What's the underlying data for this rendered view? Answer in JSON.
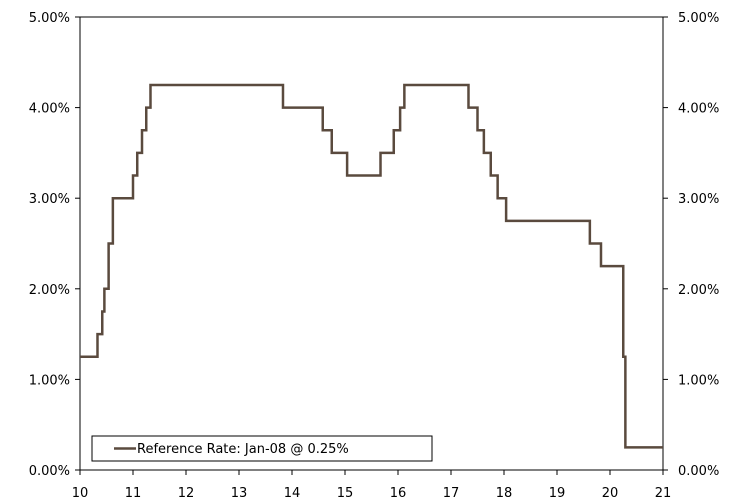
{
  "chart_data": {
    "type": "line",
    "step": true,
    "title": "",
    "xlabel": "",
    "ylabel": "",
    "xlim": [
      10,
      21
    ],
    "ylim": [
      0,
      5
    ],
    "x_ticks": [
      "10",
      "11",
      "12",
      "13",
      "14",
      "15",
      "16",
      "17",
      "18",
      "19",
      "20",
      "21"
    ],
    "y_ticks_left": [
      "0.00%",
      "1.00%",
      "2.00%",
      "3.00%",
      "4.00%",
      "5.00%"
    ],
    "y_ticks_right": [
      "0.00%",
      "1.00%",
      "2.00%",
      "3.00%",
      "4.00%",
      "5.00%"
    ],
    "grid": false,
    "legend": {
      "position": "bottom-left",
      "label": "Reference Rate: Jan-08 @ 0.25%"
    },
    "line_color": "#5a4a3e",
    "series": [
      {
        "x": [
          10.0,
          10.33,
          10.42,
          10.46,
          10.54,
          10.62,
          10.71,
          11.0,
          11.08,
          11.17,
          11.25,
          11.33,
          11.42,
          13.83,
          14.58,
          14.75,
          15.04,
          15.67,
          15.92,
          16.04,
          16.12,
          17.33,
          17.5,
          17.62,
          17.75,
          17.88,
          18.04,
          18.17,
          19.62,
          19.83,
          20.25,
          20.29,
          21.0
        ],
        "values": [
          1.25,
          1.5,
          1.75,
          2.0,
          2.5,
          3.0,
          3.0,
          3.25,
          3.5,
          3.75,
          4.0,
          4.25,
          4.25,
          4.0,
          3.75,
          3.5,
          3.25,
          3.5,
          3.75,
          4.0,
          4.25,
          4.0,
          3.75,
          3.5,
          3.25,
          3.0,
          2.75,
          2.75,
          2.5,
          2.25,
          1.25,
          0.25,
          0.25
        ]
      }
    ]
  }
}
